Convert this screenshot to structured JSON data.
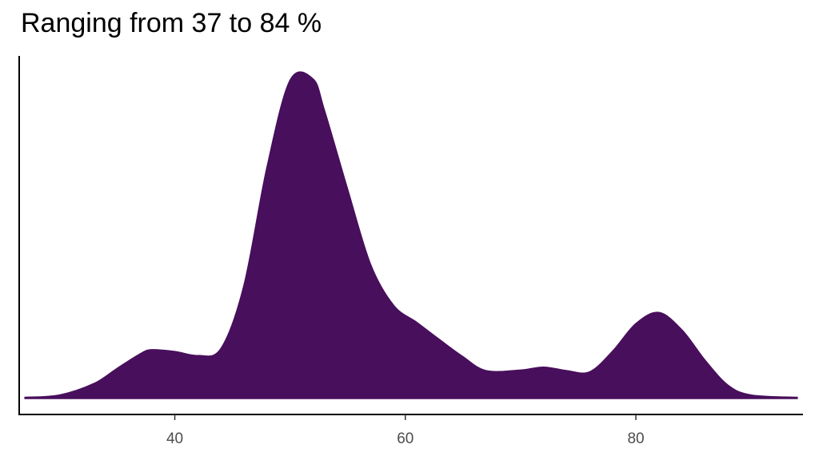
{
  "chart_data": {
    "type": "area",
    "title": "Ranging from 37 to 84 %",
    "xlabel": "",
    "ylabel": "",
    "xlim": [
      26.5,
      94.5
    ],
    "ylim": [
      0,
      0.0565
    ],
    "x_ticks": [
      40,
      60,
      80
    ],
    "x_tick_labels": [
      "40",
      "60",
      "80"
    ],
    "y_ticks": [],
    "grid": false,
    "legend": "none",
    "fill_color": "#480f5c",
    "series": [
      {
        "x": [
          27,
          30,
          33,
          35,
          37,
          38,
          40,
          42,
          44,
          46,
          48,
          50,
          52,
          53,
          55,
          57,
          59,
          61,
          63,
          65,
          67,
          70,
          72,
          74,
          76,
          78,
          80,
          82,
          84,
          86,
          88,
          90,
          94
        ],
        "y": [
          0.0002,
          0.0006,
          0.0026,
          0.0052,
          0.0077,
          0.0084,
          0.0081,
          0.0074,
          0.0086,
          0.0195,
          0.0399,
          0.0548,
          0.055,
          0.0495,
          0.036,
          0.023,
          0.016,
          0.0131,
          0.0101,
          0.0072,
          0.0048,
          0.0049,
          0.0054,
          0.0048,
          0.0046,
          0.0082,
          0.0129,
          0.0148,
          0.0118,
          0.0066,
          0.0023,
          0.0006,
          0.0002
        ]
      }
    ]
  }
}
